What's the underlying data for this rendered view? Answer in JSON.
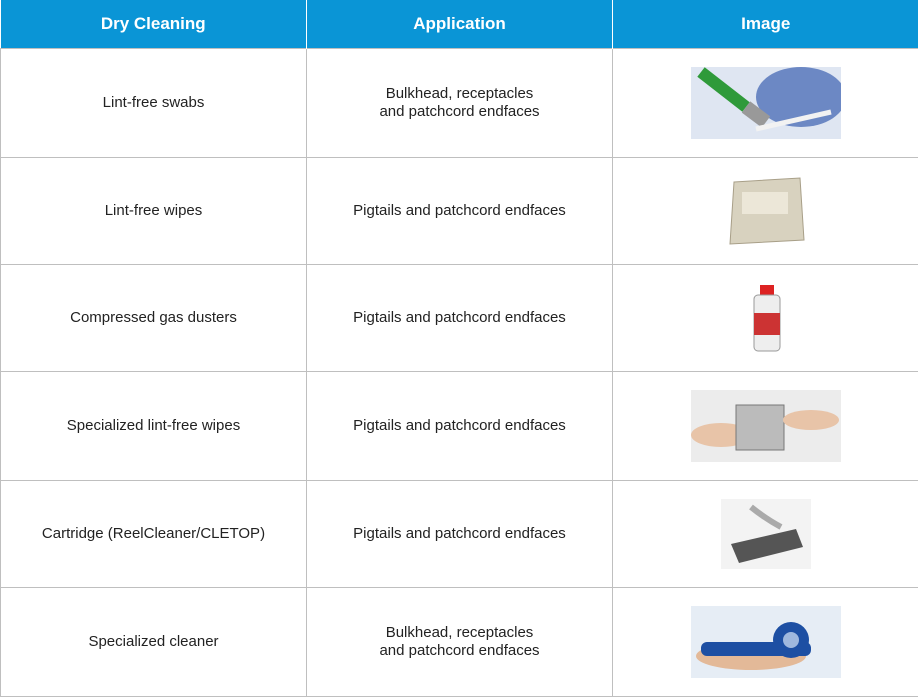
{
  "table": {
    "header": [
      "Dry Cleaning",
      "Application",
      "Image"
    ],
    "rows": [
      [
        "Lint-free swabs",
        "Bulkhead, receptacles\nand patchcord endfaces"
      ],
      [
        "Lint-free wipes",
        "Pigtails and patchcord endfaces"
      ],
      [
        "Compressed gas dusters",
        "Pigtails and patchcord endfaces"
      ],
      [
        "Specialized lint-free wipes",
        "Pigtails and patchcord endfaces"
      ],
      [
        "Cartridge (ReelCleaner/CLETOP)",
        "Pigtails and patchcord endfaces"
      ],
      [
        "Specialized cleaner",
        "Bulkhead, receptacles\nand patchcord endfaces"
      ]
    ]
  }
}
